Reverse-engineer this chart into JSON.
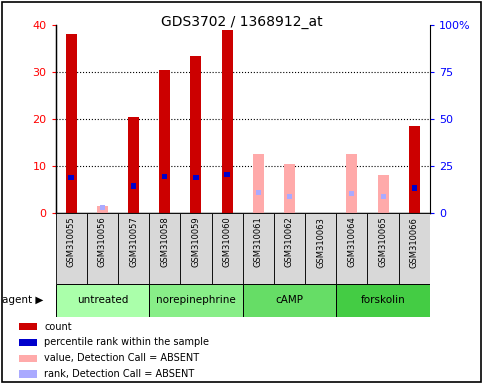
{
  "title": "GDS3702 / 1368912_at",
  "samples": [
    "GSM310055",
    "GSM310056",
    "GSM310057",
    "GSM310058",
    "GSM310059",
    "GSM310060",
    "GSM310061",
    "GSM310062",
    "GSM310063",
    "GSM310064",
    "GSM310065",
    "GSM310066"
  ],
  "groups": [
    {
      "label": "untreated",
      "color": "#aaffaa",
      "samples": [
        0,
        1,
        2
      ]
    },
    {
      "label": "norepinephrine",
      "color": "#88ee88",
      "samples": [
        3,
        4,
        5
      ]
    },
    {
      "label": "cAMP",
      "color": "#66dd66",
      "samples": [
        6,
        7,
        8
      ]
    },
    {
      "label": "forskolin",
      "color": "#44cc44",
      "samples": [
        9,
        10,
        11
      ]
    }
  ],
  "count_values": [
    38.0,
    0,
    20.5,
    30.5,
    33.5,
    39.0,
    0,
    0,
    0,
    0,
    0,
    18.5
  ],
  "rank_values": [
    19.0,
    0,
    14.5,
    19.5,
    19.0,
    20.5,
    0,
    0,
    0,
    0,
    0,
    13.5
  ],
  "absent_value": [
    0,
    1.5,
    0,
    0,
    0,
    0,
    12.5,
    10.5,
    0,
    12.5,
    8.0,
    0
  ],
  "absent_rank": [
    0,
    3.0,
    0,
    0,
    0,
    0,
    11.0,
    9.0,
    1.5,
    10.5,
    9.0,
    0
  ],
  "count_color": "#cc0000",
  "rank_color": "#0000cc",
  "absent_val_color": "#ffaaaa",
  "absent_rank_color": "#aaaaff",
  "ylim_left": [
    0,
    40
  ],
  "ylim_right": [
    0,
    100
  ],
  "yticks_left": [
    0,
    10,
    20,
    30,
    40
  ],
  "yticks_right": [
    0,
    25,
    50,
    75,
    100
  ],
  "ytick_labels_right": [
    "0",
    "25",
    "50",
    "75",
    "100%"
  ],
  "legend_items": [
    {
      "label": "count",
      "color": "#cc0000"
    },
    {
      "label": "percentile rank within the sample",
      "color": "#0000cc"
    },
    {
      "label": "value, Detection Call = ABSENT",
      "color": "#ffaaaa"
    },
    {
      "label": "rank, Detection Call = ABSENT",
      "color": "#aaaaff"
    }
  ],
  "background_color": "#f0f0f0",
  "plot_bg": "#ffffff"
}
